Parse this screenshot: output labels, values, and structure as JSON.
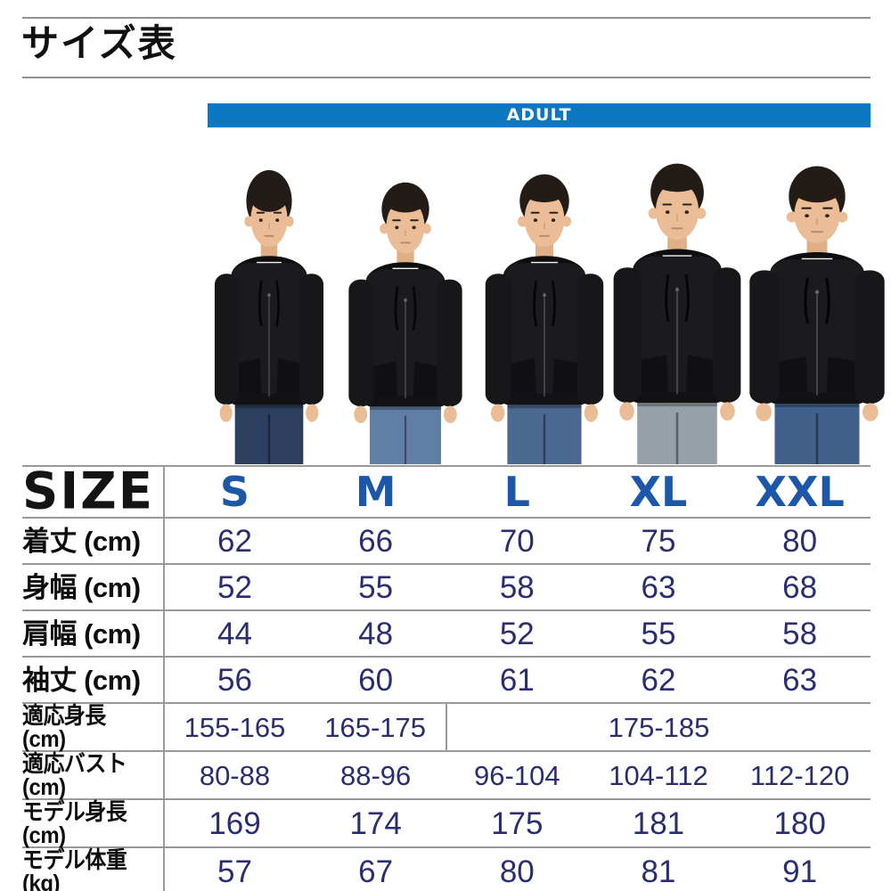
{
  "page_title": "サイズ表",
  "banner": {
    "label": "ADULT"
  },
  "photo": {
    "description": "黒いジップアップパーカーを着た5人の男性モデル（左からS・M・L・XL・XXLサイズ着用）",
    "models": [
      {
        "size": "S"
      },
      {
        "size": "M"
      },
      {
        "size": "L"
      },
      {
        "size": "XL"
      },
      {
        "size": "XXL"
      }
    ]
  },
  "size_table": {
    "corner": "SIZE",
    "columns": [
      "S",
      "M",
      "L",
      "XL",
      "XXL"
    ],
    "rows": [
      {
        "label": "着丈 (cm)",
        "cells": [
          {
            "v": "62"
          },
          {
            "v": "66"
          },
          {
            "v": "70"
          },
          {
            "v": "75"
          },
          {
            "v": "80"
          }
        ]
      },
      {
        "label": "身幅 (cm)",
        "cells": [
          {
            "v": "52"
          },
          {
            "v": "55"
          },
          {
            "v": "58"
          },
          {
            "v": "63"
          },
          {
            "v": "68"
          }
        ]
      },
      {
        "label": "肩幅 (cm)",
        "cells": [
          {
            "v": "44"
          },
          {
            "v": "48"
          },
          {
            "v": "52"
          },
          {
            "v": "55"
          },
          {
            "v": "58"
          }
        ]
      },
      {
        "label": "袖丈 (cm)",
        "cells": [
          {
            "v": "56"
          },
          {
            "v": "60"
          },
          {
            "v": "61"
          },
          {
            "v": "62"
          },
          {
            "v": "63"
          }
        ]
      },
      {
        "label": "適応身長 (cm)",
        "cells": [
          {
            "v": "155-165"
          },
          {
            "v": "165-175"
          },
          {
            "v": "175-185",
            "span": 3
          }
        ]
      },
      {
        "label": "適応バスト (cm)",
        "cells": [
          {
            "v": "80-88"
          },
          {
            "v": "88-96"
          },
          {
            "v": "96-104"
          },
          {
            "v": "104-112"
          },
          {
            "v": "112-120"
          }
        ]
      },
      {
        "label": "モデル身長 (cm)",
        "cells": [
          {
            "v": "169"
          },
          {
            "v": "174"
          },
          {
            "v": "175"
          },
          {
            "v": "181"
          },
          {
            "v": "180"
          }
        ]
      },
      {
        "label": "モデル体重 (kg)",
        "cells": [
          {
            "v": "57"
          },
          {
            "v": "67"
          },
          {
            "v": "80"
          },
          {
            "v": "81"
          },
          {
            "v": "91"
          }
        ]
      }
    ]
  },
  "colors": {
    "banner_bg": "#0b76c1",
    "banner_text": "#ffffff",
    "size_header_text": "#1d57aa",
    "value_text": "#2a2d6e",
    "label_text": "#111111",
    "grid_line": "#9a9a9a"
  },
  "chart_data": {
    "type": "table",
    "title": "サイズ表",
    "column_group": "ADULT",
    "columns": [
      "SIZE",
      "S",
      "M",
      "L",
      "XL",
      "XXL"
    ],
    "rows": [
      [
        "着丈 (cm)",
        "62",
        "66",
        "70",
        "75",
        "80"
      ],
      [
        "身幅 (cm)",
        "52",
        "55",
        "58",
        "63",
        "68"
      ],
      [
        "肩幅 (cm)",
        "44",
        "48",
        "52",
        "55",
        "58"
      ],
      [
        "袖丈 (cm)",
        "56",
        "60",
        "61",
        "62",
        "63"
      ],
      [
        "適応身長 (cm)",
        "155-165",
        "165-175",
        "175-185",
        "175-185",
        "175-185"
      ],
      [
        "適応バスト (cm)",
        "80-88",
        "88-96",
        "96-104",
        "104-112",
        "112-120"
      ],
      [
        "モデル身長 (cm)",
        "169",
        "174",
        "175",
        "181",
        "180"
      ],
      [
        "モデル体重 (kg)",
        "57",
        "67",
        "80",
        "81",
        "91"
      ]
    ]
  }
}
